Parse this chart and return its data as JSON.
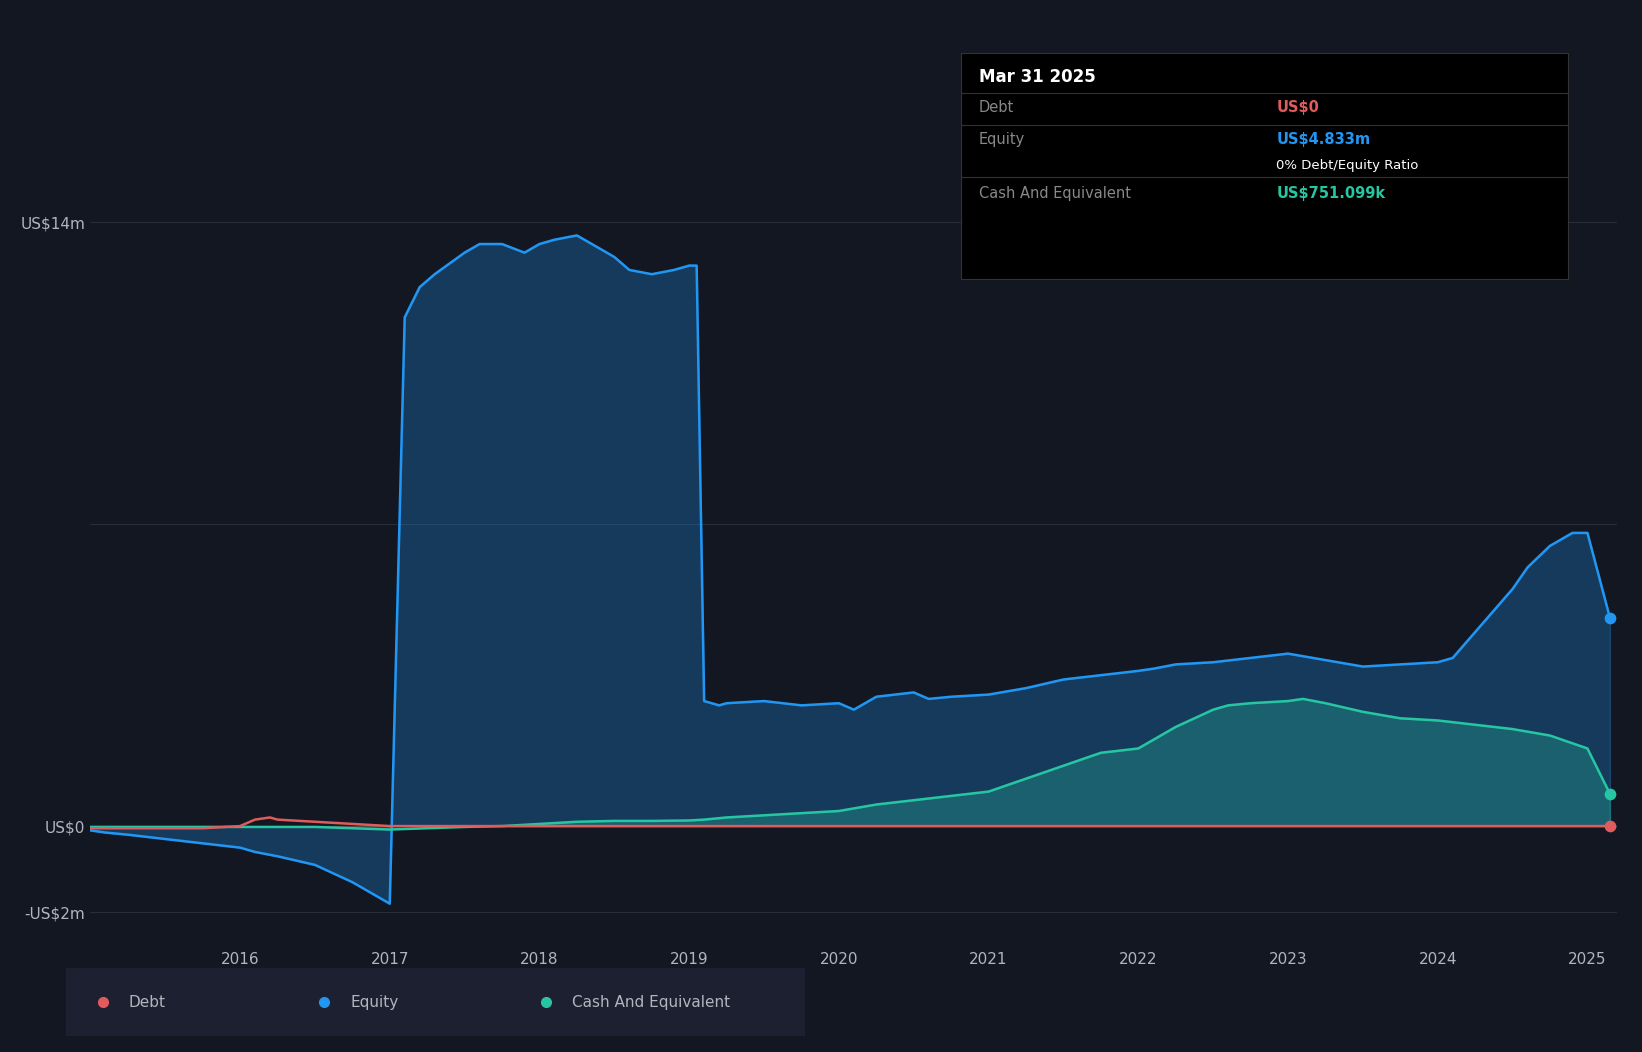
{
  "background_color": "#131722",
  "plot_bg_color": "#131722",
  "grid_color": "#2a2e39",
  "text_color": "#b2b5be",
  "title_color": "#ffffff",
  "debt_color": "#e05c5c",
  "equity_color": "#2196f3",
  "cash_color": "#26c6a2",
  "ylabel_top": "US$14m",
  "ylabel_zero": "US$0",
  "ylabel_neg": "-US$2m",
  "x_ticks": [
    2016,
    2017,
    2018,
    2019,
    2020,
    2021,
    2022,
    2023,
    2024,
    2025
  ],
  "tooltip_title": "Mar 31 2025",
  "tooltip_debt_label": "Debt",
  "tooltip_debt_value": "US$0",
  "tooltip_equity_label": "Equity",
  "tooltip_equity_value": "US$4.833m",
  "tooltip_ratio": "0% Debt/Equity Ratio",
  "tooltip_cash_label": "Cash And Equivalent",
  "tooltip_cash_value": "US$751.099k",
  "legend_items": [
    "Debt",
    "Equity",
    "Cash And Equivalent"
  ],
  "ylim_min": -2.8,
  "ylim_max": 15.5,
  "equity_data": {
    "x": [
      2015.0,
      2015.1,
      2015.25,
      2015.5,
      2015.75,
      2016.0,
      2016.1,
      2016.25,
      2016.5,
      2016.75,
      2016.9,
      2017.0,
      2017.05,
      2017.1,
      2017.2,
      2017.3,
      2017.5,
      2017.6,
      2017.75,
      2017.9,
      2018.0,
      2018.1,
      2018.25,
      2018.4,
      2018.5,
      2018.6,
      2018.75,
      2018.9,
      2019.0,
      2019.05,
      2019.1,
      2019.2,
      2019.25,
      2019.5,
      2019.75,
      2020.0,
      2020.1,
      2020.25,
      2020.5,
      2020.6,
      2020.75,
      2021.0,
      2021.25,
      2021.5,
      2021.75,
      2022.0,
      2022.1,
      2022.25,
      2022.5,
      2022.75,
      2023.0,
      2023.25,
      2023.5,
      2023.75,
      2024.0,
      2024.1,
      2024.25,
      2024.5,
      2024.6,
      2024.75,
      2024.9,
      2025.0,
      2025.15
    ],
    "y": [
      -0.1,
      -0.15,
      -0.2,
      -0.3,
      -0.4,
      -0.5,
      -0.6,
      -0.7,
      -0.9,
      -1.3,
      -1.6,
      -1.8,
      5.0,
      11.8,
      12.5,
      12.8,
      13.3,
      13.5,
      13.5,
      13.3,
      13.5,
      13.6,
      13.7,
      13.4,
      13.2,
      12.9,
      12.8,
      12.9,
      13.0,
      13.0,
      2.9,
      2.8,
      2.85,
      2.9,
      2.8,
      2.85,
      2.7,
      3.0,
      3.1,
      2.95,
      3.0,
      3.05,
      3.2,
      3.4,
      3.5,
      3.6,
      3.65,
      3.75,
      3.8,
      3.9,
      4.0,
      3.85,
      3.7,
      3.75,
      3.8,
      3.9,
      4.5,
      5.5,
      6.0,
      6.5,
      6.8,
      6.8,
      4.833
    ]
  },
  "debt_data": {
    "x": [
      2015.0,
      2015.25,
      2015.5,
      2015.75,
      2016.0,
      2016.1,
      2016.2,
      2016.25,
      2016.5,
      2016.75,
      2017.0,
      2017.25,
      2017.5,
      2017.75,
      2018.0,
      2018.25,
      2018.5,
      2018.75,
      2019.0,
      2019.25,
      2019.5,
      2019.75,
      2020.0,
      2020.25,
      2020.5,
      2020.75,
      2021.0,
      2021.25,
      2021.5,
      2021.75,
      2022.0,
      2022.25,
      2022.5,
      2022.75,
      2023.0,
      2023.25,
      2023.5,
      2023.75,
      2024.0,
      2024.25,
      2024.5,
      2024.75,
      2025.0,
      2025.15
    ],
    "y": [
      -0.05,
      -0.05,
      -0.05,
      -0.05,
      0.0,
      0.15,
      0.2,
      0.15,
      0.1,
      0.05,
      0.0,
      0.0,
      0.0,
      0.0,
      0.0,
      0.0,
      0.0,
      0.0,
      0.0,
      0.0,
      0.0,
      0.0,
      0.0,
      0.0,
      0.0,
      0.0,
      0.0,
      0.0,
      0.0,
      0.0,
      0.0,
      0.0,
      0.0,
      0.0,
      0.0,
      0.0,
      0.0,
      0.0,
      0.0,
      0.0,
      0.0,
      0.0,
      0.0,
      0.0
    ]
  },
  "cash_data": {
    "x": [
      2015.0,
      2015.25,
      2015.5,
      2015.75,
      2016.0,
      2016.25,
      2016.5,
      2016.75,
      2017.0,
      2017.25,
      2017.5,
      2017.75,
      2018.0,
      2018.25,
      2018.5,
      2018.75,
      2019.0,
      2019.1,
      2019.25,
      2019.5,
      2019.75,
      2020.0,
      2020.25,
      2020.5,
      2020.75,
      2021.0,
      2021.25,
      2021.5,
      2021.75,
      2022.0,
      2022.1,
      2022.25,
      2022.5,
      2022.6,
      2022.75,
      2023.0,
      2023.1,
      2023.25,
      2023.5,
      2023.75,
      2024.0,
      2024.25,
      2024.5,
      2024.75,
      2025.0,
      2025.15
    ],
    "y": [
      -0.02,
      -0.02,
      -0.02,
      -0.02,
      -0.02,
      -0.02,
      -0.02,
      -0.05,
      -0.08,
      -0.05,
      -0.02,
      0.0,
      0.05,
      0.1,
      0.12,
      0.12,
      0.13,
      0.15,
      0.2,
      0.25,
      0.3,
      0.35,
      0.5,
      0.6,
      0.7,
      0.8,
      1.1,
      1.4,
      1.7,
      1.8,
      2.0,
      2.3,
      2.7,
      2.8,
      2.85,
      2.9,
      2.95,
      2.85,
      2.65,
      2.5,
      2.45,
      2.35,
      2.25,
      2.1,
      1.8,
      0.751
    ]
  }
}
